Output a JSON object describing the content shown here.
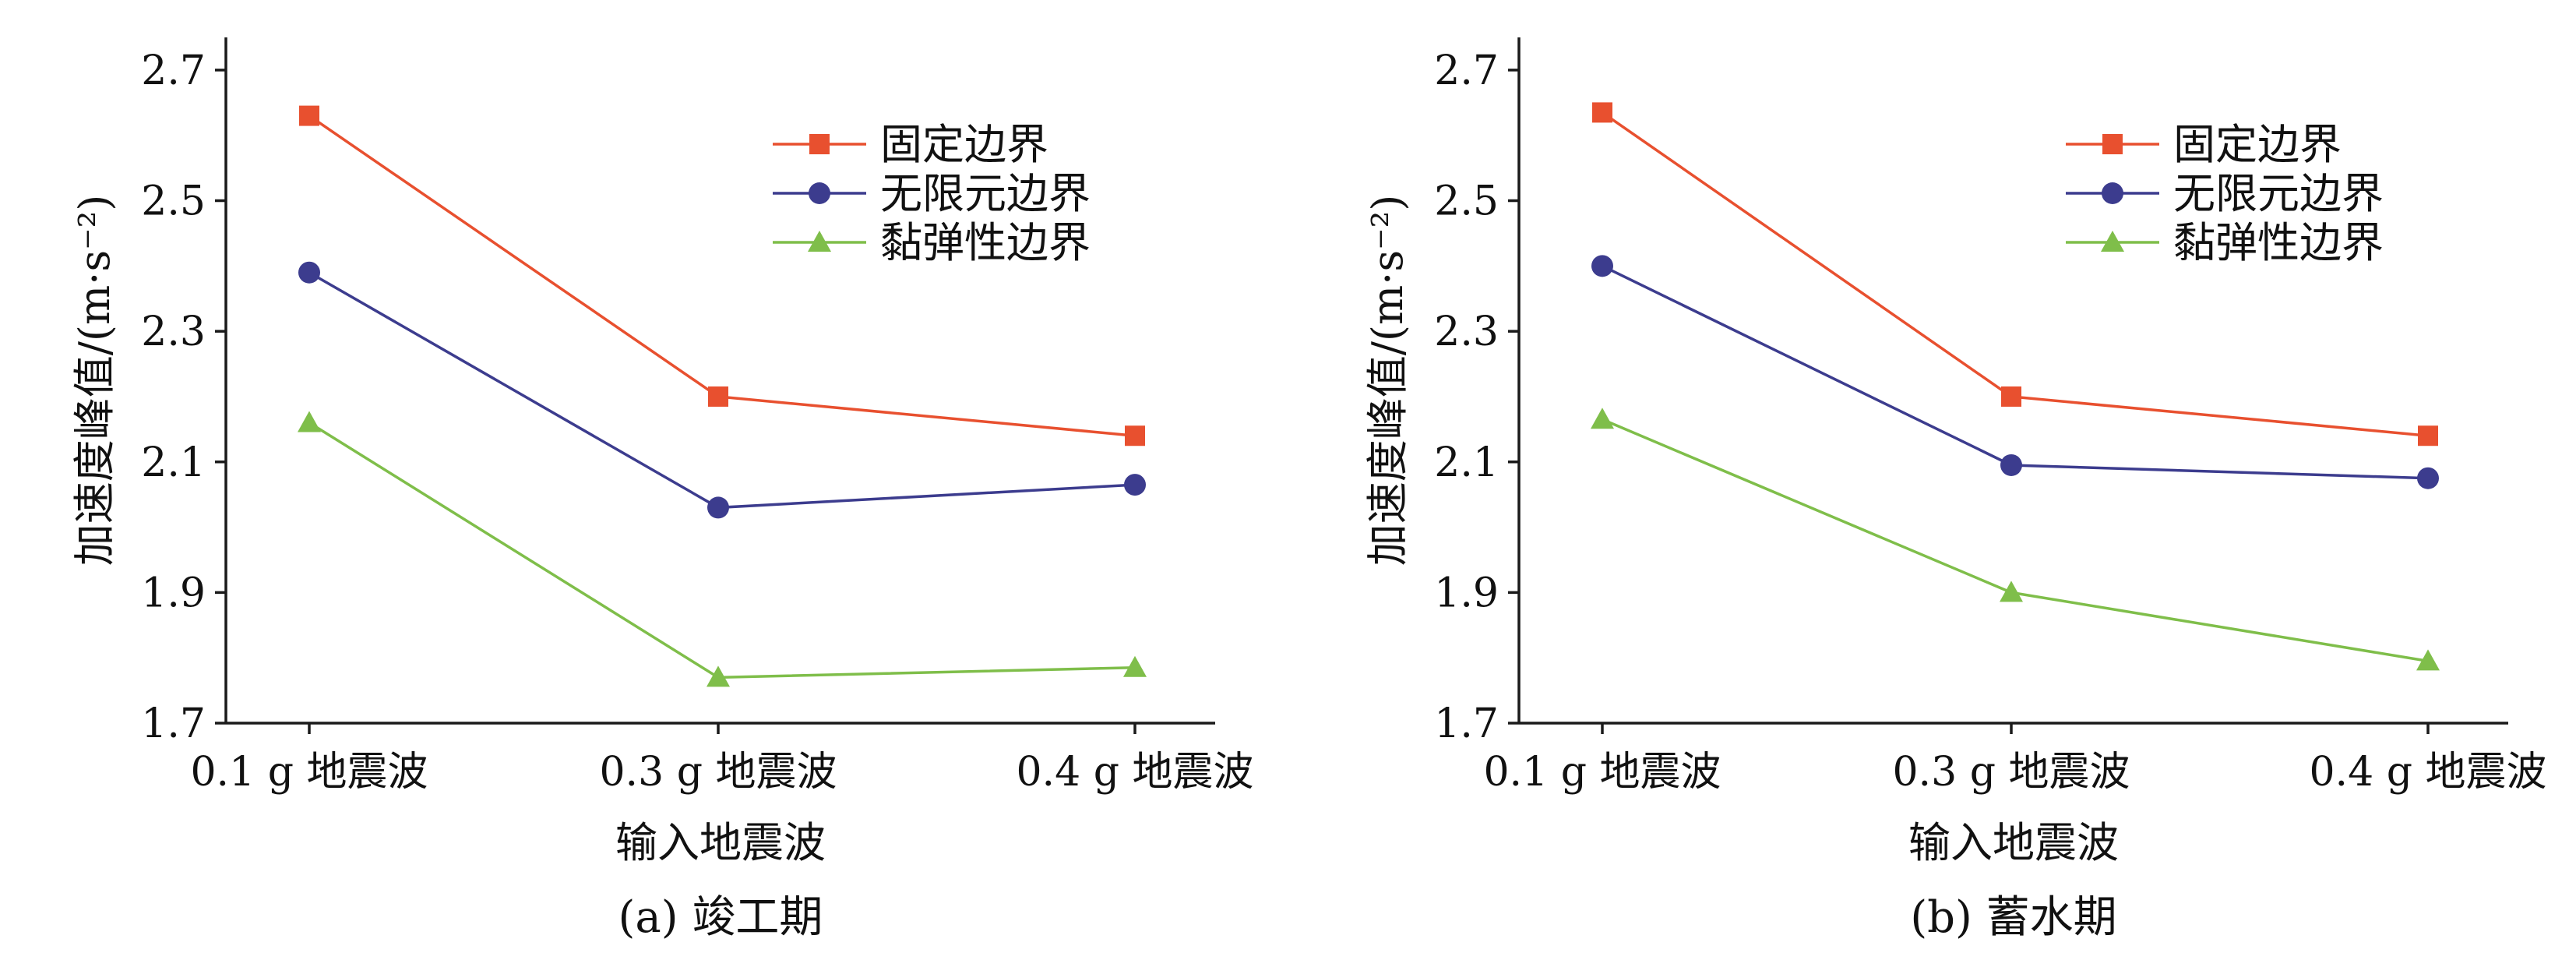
{
  "chart_data": [
    {
      "type": "line",
      "caption": "(a) 竣工期",
      "xlabel": "输入地震波",
      "ylabel": "加速度峰值/(m·s⁻²)",
      "categories": [
        "0.1 g 地震波",
        "0.3 g 地震波",
        "0.4 g 地震波"
      ],
      "ylim": [
        1.7,
        2.75
      ],
      "yticks": [
        "1.7",
        "1.9",
        "2.1",
        "2.3",
        "2.5",
        "2.7"
      ],
      "legend_position": "top-right",
      "series": [
        {
          "name": "固定边界",
          "color": "#e8502f",
          "marker": "square",
          "values": [
            2.63,
            2.2,
            2.14
          ]
        },
        {
          "name": "无限元边界",
          "color": "#3c3c8e",
          "marker": "circle",
          "values": [
            2.39,
            2.03,
            2.065
          ]
        },
        {
          "name": "黏弹性边界",
          "color": "#7fbe4a",
          "marker": "triangle",
          "values": [
            2.16,
            1.77,
            1.785
          ]
        }
      ]
    },
    {
      "type": "line",
      "caption": "(b) 蓄水期",
      "xlabel": "输入地震波",
      "ylabel": "加速度峰值/(m·s⁻²)",
      "categories": [
        "0.1 g 地震波",
        "0.3 g 地震波",
        "0.4 g 地震波"
      ],
      "ylim": [
        1.7,
        2.75
      ],
      "yticks": [
        "1.7",
        "1.9",
        "2.1",
        "2.3",
        "2.5",
        "2.7"
      ],
      "legend_position": "top-right",
      "series": [
        {
          "name": "固定边界",
          "color": "#e8502f",
          "marker": "square",
          "values": [
            2.635,
            2.2,
            2.14
          ]
        },
        {
          "name": "无限元边界",
          "color": "#3c3c8e",
          "marker": "circle",
          "values": [
            2.4,
            2.095,
            2.075
          ]
        },
        {
          "name": "黏弹性边界",
          "color": "#7fbe4a",
          "marker": "triangle",
          "values": [
            2.165,
            1.9,
            1.795
          ]
        }
      ]
    }
  ]
}
